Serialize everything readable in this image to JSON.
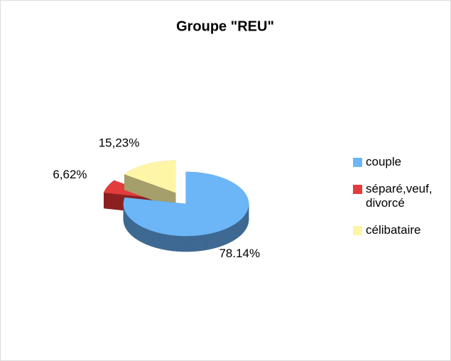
{
  "chart_data": {
    "type": "pie",
    "title": "Groupe \"REU\"",
    "categories": [
      "couple",
      "séparé,veuf, divorcé",
      "célibataire"
    ],
    "values": [
      78.14,
      6.62,
      15.23
    ],
    "value_labels": [
      "78.14%",
      "6,62%",
      "15,23%"
    ],
    "colors": [
      "#6cb6f7",
      "#e23c3c",
      "#fff5a6"
    ],
    "side_colors": [
      "#3e6992",
      "#8c2020",
      "#a59f6c"
    ],
    "legend": "right"
  }
}
